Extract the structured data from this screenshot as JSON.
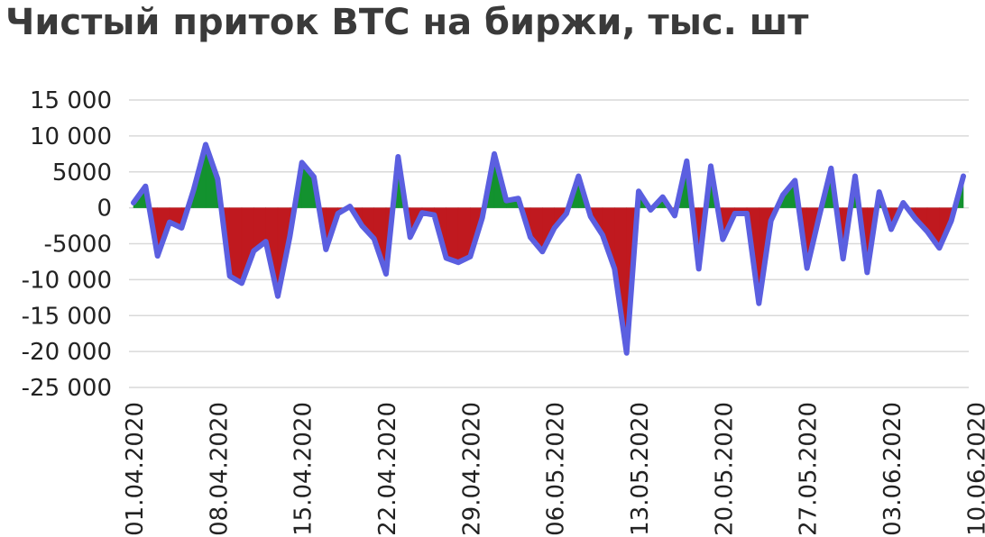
{
  "chart_data": {
    "type": "area",
    "title": "Чистый приток BTC на биржи, тыс. шт",
    "xlabel": "",
    "ylabel": "",
    "ylim": [
      -25000,
      15000
    ],
    "yticks": [
      15000,
      10000,
      5000,
      0,
      -5000,
      -10000,
      -15000,
      -20000,
      -25000
    ],
    "ytick_labels": [
      "15 000",
      "10 000",
      "5000",
      "0",
      "-5000",
      "-10 000",
      "-15 000",
      "-20 000",
      "-25 000"
    ],
    "xtick_labels": [
      "01.04.2020",
      "08.04.2020",
      "15.04.2020",
      "22.04.2020",
      "29.04.2020",
      "06.05.2020",
      "13.05.2020",
      "20.05.2020",
      "27.05.2020",
      "03.06.2020",
      "10.06.2020"
    ],
    "xtick_index": [
      0,
      7,
      14,
      21,
      28,
      35,
      42,
      49,
      56,
      63,
      70
    ],
    "grid": true,
    "colors": {
      "line": "#5b5fe0",
      "positive_fill": "#13922f",
      "negative_fill": "#c0191f",
      "grid": "#d9d9d9"
    },
    "series": [
      {
        "values": [
          700,
          3000,
          -6700,
          -2000,
          -2800,
          2500,
          8800,
          4000,
          -9500,
          -10500,
          -6000,
          -4700,
          -12300,
          -4000,
          6300,
          4300,
          -5800,
          -800,
          200,
          -2500,
          -4300,
          -9200,
          7100,
          -4100,
          -700,
          -1000,
          -7000,
          -7600,
          -6800,
          -1400,
          7500,
          1000,
          1300,
          -4100,
          -6100,
          -2800,
          -800,
          4400,
          -1200,
          -3800,
          -8500,
          -20200,
          2300,
          -300,
          1500,
          -1100,
          6500,
          -8500,
          5800,
          -4400,
          -800,
          -800,
          -13300,
          -1800,
          1800,
          3800,
          -8400,
          -1300,
          5500,
          -7100,
          4400,
          -9000,
          2200,
          -3000,
          700,
          -1500,
          -3300,
          -5600,
          -1800,
          4400
        ]
      }
    ]
  }
}
